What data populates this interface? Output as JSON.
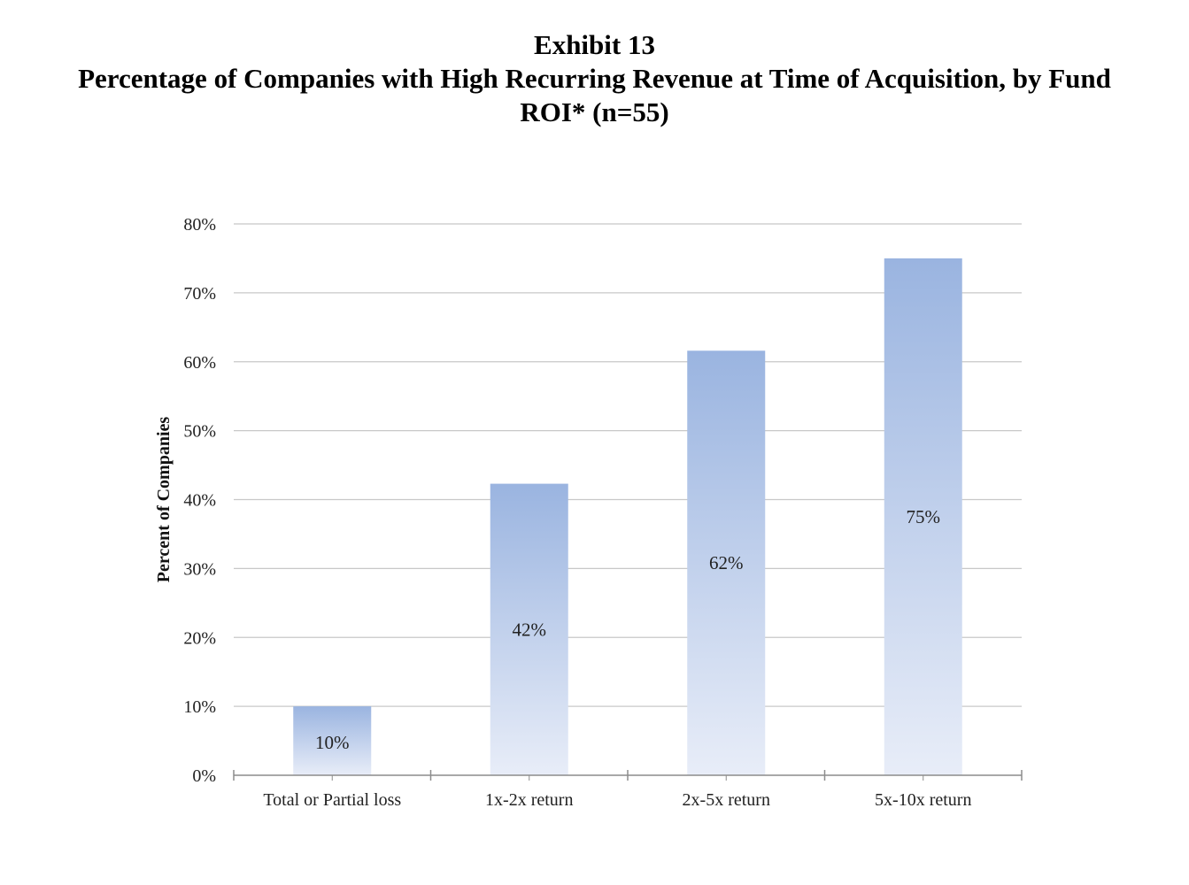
{
  "chart_data": {
    "type": "bar",
    "title_lines": [
      "Exhibit 13",
      "Percentage of Companies with High Recurring Revenue at Time of Acquisition, by Fund",
      "ROI* (n=55)"
    ],
    "categories": [
      "Total or Partial loss",
      "1x-2x return",
      "2x-5x return",
      "5x-10x return"
    ],
    "values": [
      10,
      42.3,
      61.6,
      75
    ],
    "data_labels": [
      "10%",
      "42%",
      "62%",
      "75%"
    ],
    "ylabel": "Percent of Companies",
    "xlabel": "",
    "ylim": [
      0,
      80
    ],
    "yticks": [
      0,
      10,
      20,
      30,
      40,
      50,
      60,
      70,
      80
    ],
    "ytick_labels": [
      "0%",
      "10%",
      "20%",
      "30%",
      "40%",
      "50%",
      "60%",
      "70%",
      "80%"
    ],
    "grid": true,
    "legend": "none",
    "colors": {
      "bar_top": "#9ab4e0",
      "bar_bottom": "#e8edf8",
      "grid": "#c8c8c8",
      "axis": "#8c8c8c"
    }
  }
}
